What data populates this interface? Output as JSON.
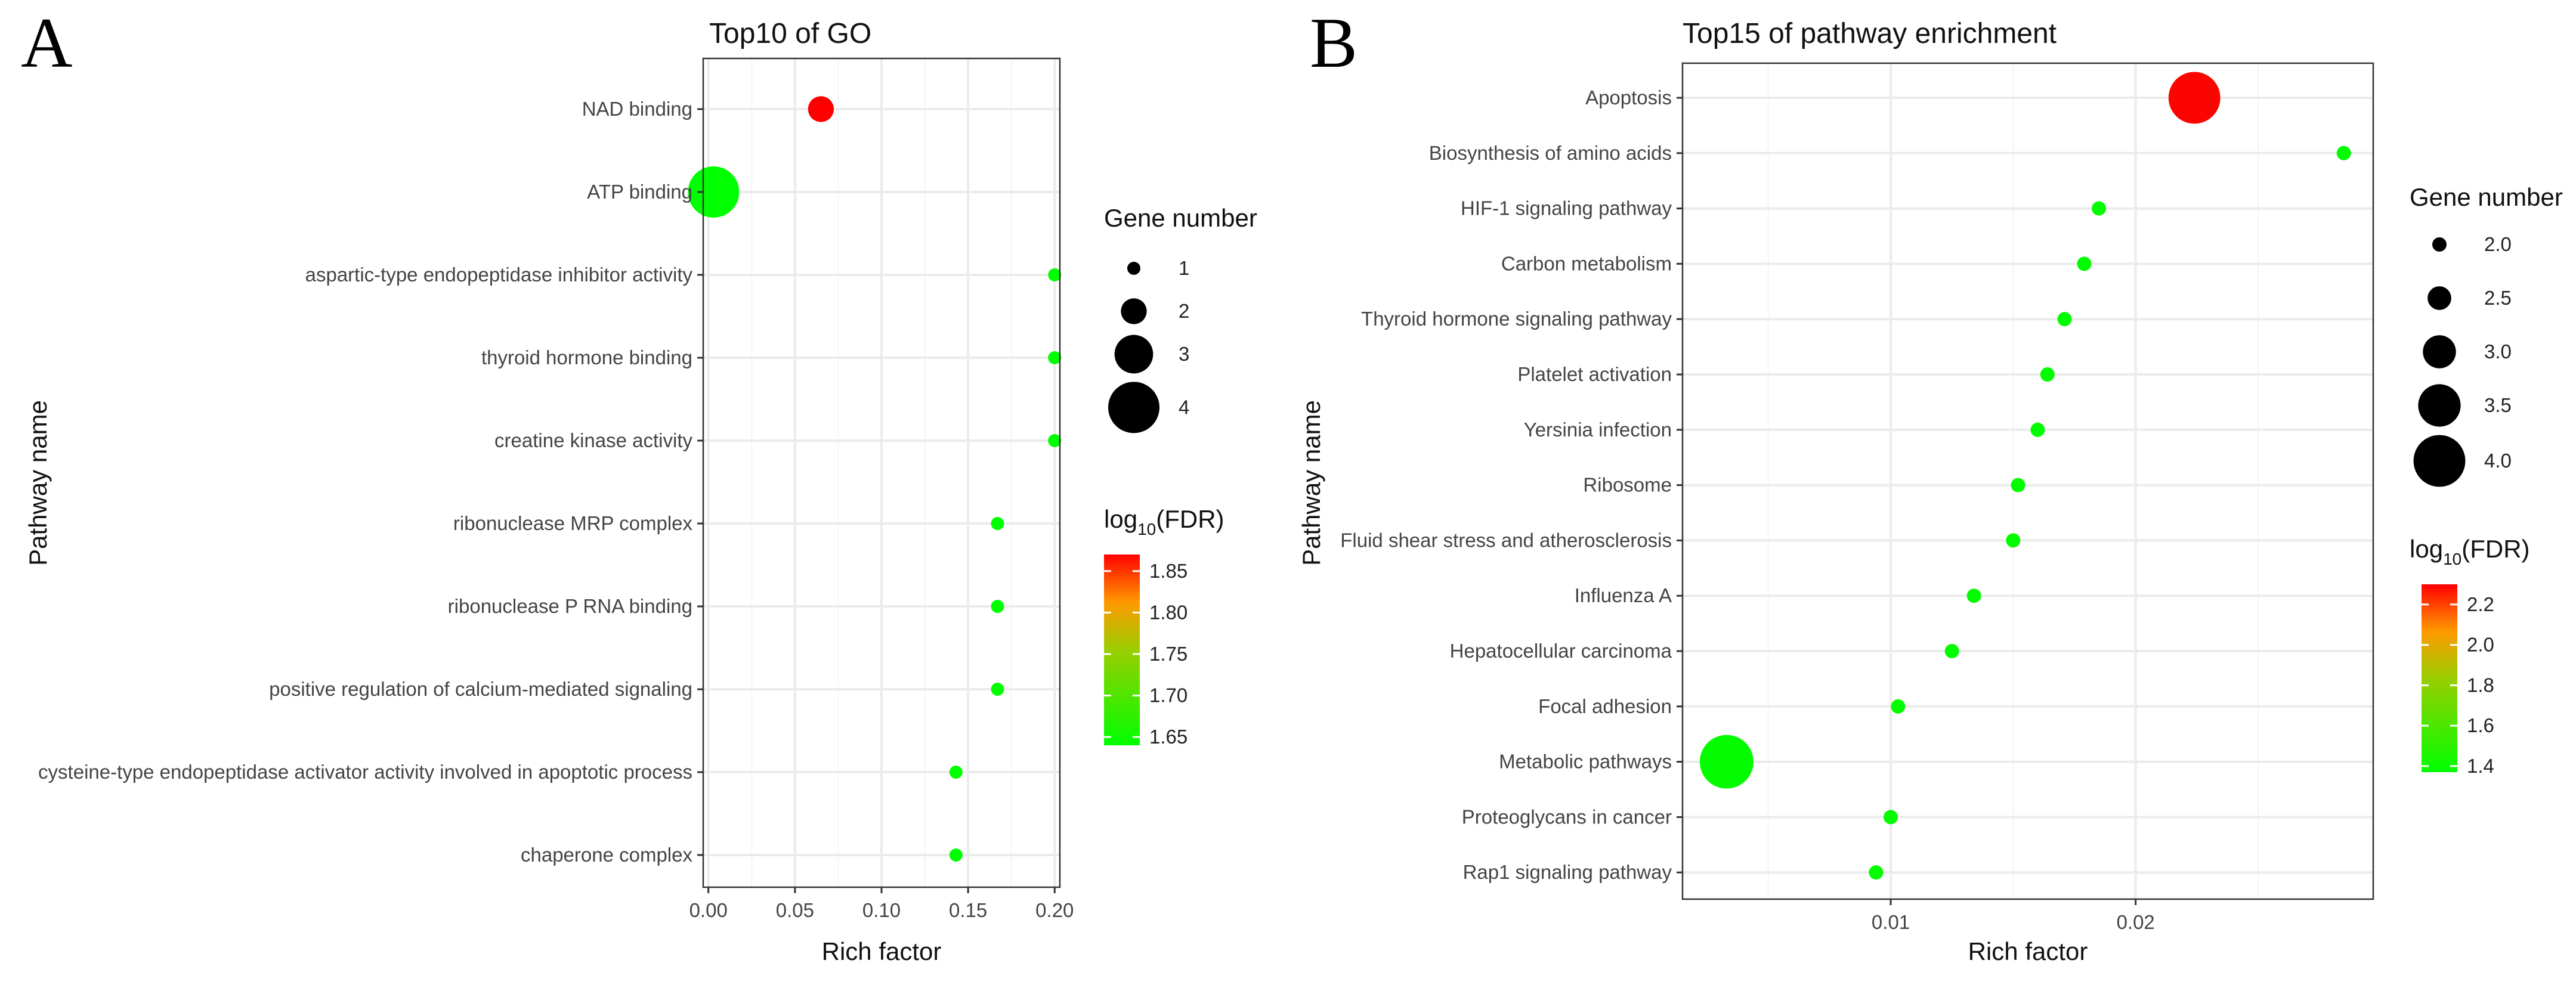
{
  "chart_data": [
    {
      "panel": "A",
      "type": "scatter",
      "title": "Top10 of GO",
      "xlabel": "Rich factor",
      "ylabel": "Pathway name",
      "xlim": [
        -0.003,
        0.203
      ],
      "xticks": [
        0.0,
        0.05,
        0.1,
        0.15,
        0.2
      ],
      "xtick_labels": [
        "0.00",
        "0.05",
        "0.10",
        "0.15",
        "0.20"
      ],
      "categories": [
        "NAD binding",
        "ATP binding",
        "aspartic-type endopeptidase inhibitor activity",
        "thyroid hormone binding",
        "creatine kinase activity",
        "ribonuclease MRP complex",
        "ribonuclease P RNA binding",
        "positive regulation of calcium-mediated signaling",
        "cysteine-type endopeptidase activator activity involved in apoptotic process",
        "chaperone complex"
      ],
      "rich_factor": [
        0.065,
        0.003,
        0.2,
        0.2,
        0.2,
        0.167,
        0.167,
        0.167,
        0.143,
        0.143
      ],
      "gene_number": [
        2,
        4,
        1,
        1,
        1,
        1,
        1,
        1,
        1,
        1
      ],
      "log10_fdr": [
        1.87,
        1.64,
        1.64,
        1.64,
        1.64,
        1.64,
        1.64,
        1.64,
        1.64,
        1.64
      ],
      "size_legend": {
        "title": "Gene number",
        "values": [
          1,
          2,
          3,
          4
        ],
        "labels": [
          "1",
          "2",
          "3",
          "4"
        ],
        "range": [
          1,
          4
        ]
      },
      "color_legend": {
        "title_base": "log",
        "title_sub": "10",
        "title_rest": "(FDR)",
        "ticks": [
          1.65,
          1.7,
          1.75,
          1.8,
          1.85
        ],
        "tick_labels": [
          "1.65",
          "1.70",
          "1.75",
          "1.80",
          "1.85"
        ],
        "range": [
          1.64,
          1.87
        ],
        "low_color": "#00ff00",
        "high_color": "#ff0000"
      }
    },
    {
      "panel": "B",
      "type": "scatter",
      "title": "Top15 of pathway enrichment",
      "xlabel": "Rich factor",
      "ylabel": "Pathway name",
      "xlim": [
        0.0015,
        0.0297
      ],
      "xticks": [
        0.01,
        0.02
      ],
      "xtick_labels": [
        "0.01",
        "0.02"
      ],
      "categories": [
        "Apoptosis",
        "Biosynthesis of amino acids",
        "HIF-1 signaling pathway",
        "Carbon metabolism",
        "Thyroid hormone signaling pathway",
        "Platelet activation",
        "Yersinia infection",
        "Ribosome",
        "Fluid shear stress and atherosclerosis",
        "Influenza A",
        "Hepatocellular carcinoma",
        "Focal adhesion",
        "Metabolic pathways",
        "Proteoglycans in cancer",
        "Rap1 signaling pathway"
      ],
      "rich_factor": [
        0.0224,
        0.0285,
        0.0185,
        0.0179,
        0.0171,
        0.0164,
        0.016,
        0.0152,
        0.015,
        0.0134,
        0.0125,
        0.0103,
        0.0033,
        0.01,
        0.0094
      ],
      "gene_number": [
        4,
        2,
        2,
        2,
        2,
        2,
        2,
        2,
        2,
        2,
        2,
        2,
        4.1,
        2,
        2
      ],
      "log10_fdr": [
        2.28,
        1.38,
        1.38,
        1.38,
        1.38,
        1.38,
        1.38,
        1.38,
        1.38,
        1.38,
        1.38,
        1.38,
        1.38,
        1.38,
        1.38
      ],
      "size_legend": {
        "title": "Gene number",
        "values": [
          2.0,
          2.5,
          3.0,
          3.5,
          4.0
        ],
        "labels": [
          "2.0",
          "2.5",
          "3.0",
          "3.5",
          "4.0"
        ],
        "range": [
          2.0,
          4.1
        ]
      },
      "color_legend": {
        "title_base": "log",
        "title_sub": "10",
        "title_rest": "(FDR)",
        "ticks": [
          1.4,
          1.6,
          1.8,
          2.0,
          2.2
        ],
        "tick_labels": [
          "1.4",
          "1.6",
          "1.8",
          "2.0",
          "2.2"
        ],
        "range": [
          1.37,
          2.3
        ],
        "low_color": "#00ff00",
        "high_color": "#ff0000"
      }
    }
  ]
}
